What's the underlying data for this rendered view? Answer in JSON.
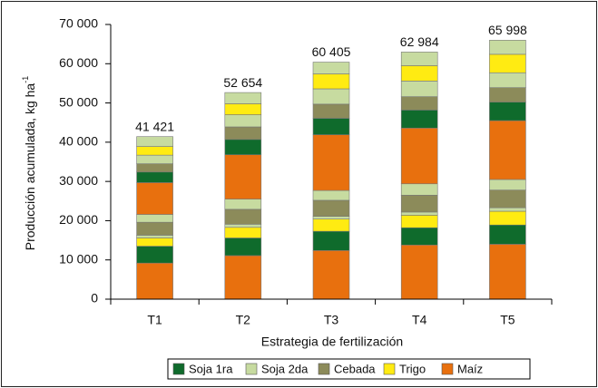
{
  "chart_data": {
    "type": "stacked_bar",
    "ylabel": "Producción acumulada, kg ha",
    "ylabel_sup": "-1",
    "xlabel": "Estrategia de fertilización",
    "categories": [
      "T1",
      "T2",
      "T3",
      "T4",
      "T5"
    ],
    "ylim": [
      0,
      70000
    ],
    "yticks": [
      0,
      {
        "value": 10000,
        "label": "10 000"
      },
      {
        "value": 20000,
        "label": "20 000"
      },
      {
        "value": 30000,
        "label": "30 000"
      },
      {
        "value": 40000,
        "label": "40 000"
      },
      {
        "value": 50000,
        "label": "50 000"
      },
      {
        "value": 60000,
        "label": "60 000"
      },
      {
        "value": 70000,
        "label": "70 000"
      }
    ],
    "legend": [
      "Soja 1ra",
      "Soja 2da",
      "Cebada",
      "Trigo",
      "Maíz"
    ],
    "series": [
      {
        "name": "Maíz",
        "color": "#e8700e",
        "values": [
          9200,
          11100,
          12400,
          13800,
          14000
        ]
      },
      {
        "name": "Soja 1ra",
        "color": "#0f6b2c",
        "values": [
          4300,
          4500,
          4900,
          4400,
          4900
        ]
      },
      {
        "name": "Trigo",
        "color": "#ffeb12",
        "values": [
          2100,
          2700,
          3100,
          3200,
          3500
        ]
      },
      {
        "name": "Soja 2da",
        "color": "#c7dba0",
        "values": [
          700,
          800,
          700,
          800,
          900
        ]
      },
      {
        "name": "Cebada",
        "color": "#8c8b5a",
        "values": [
          3300,
          3800,
          4100,
          4300,
          4500
        ]
      },
      {
        "name": "Soja 2da",
        "color": "#c7dba0",
        "values": [
          2000,
          2600,
          2500,
          2900,
          2700
        ]
      },
      {
        "name": "Maíz",
        "color": "#e8700e",
        "values": [
          8100,
          11300,
          14200,
          14200,
          15000
        ]
      },
      {
        "name": "Soja 1ra",
        "color": "#0f6b2c",
        "values": [
          2700,
          3900,
          4200,
          4600,
          4700
        ]
      },
      {
        "name": "Cebada",
        "color": "#8c8b5a",
        "values": [
          2100,
          3200,
          3600,
          3400,
          3700
        ]
      },
      {
        "name": "Soja 2da",
        "color": "#c7dba0",
        "values": [
          2200,
          3100,
          3900,
          4000,
          3800
        ]
      },
      {
        "name": "Trigo",
        "color": "#ffeb12",
        "values": [
          2200,
          2800,
          3800,
          3900,
          4700
        ]
      },
      {
        "name": "Soja 2da",
        "color": "#c7dba0",
        "values": [
          2521,
          2854,
          3005,
          3484,
          3598
        ]
      }
    ],
    "totals": {
      "values": [
        41421,
        52654,
        60405,
        62984,
        65998
      ],
      "value_labels": [
        "41 421",
        "52 654",
        "60 405",
        "62 984",
        "65 998"
      ]
    }
  }
}
